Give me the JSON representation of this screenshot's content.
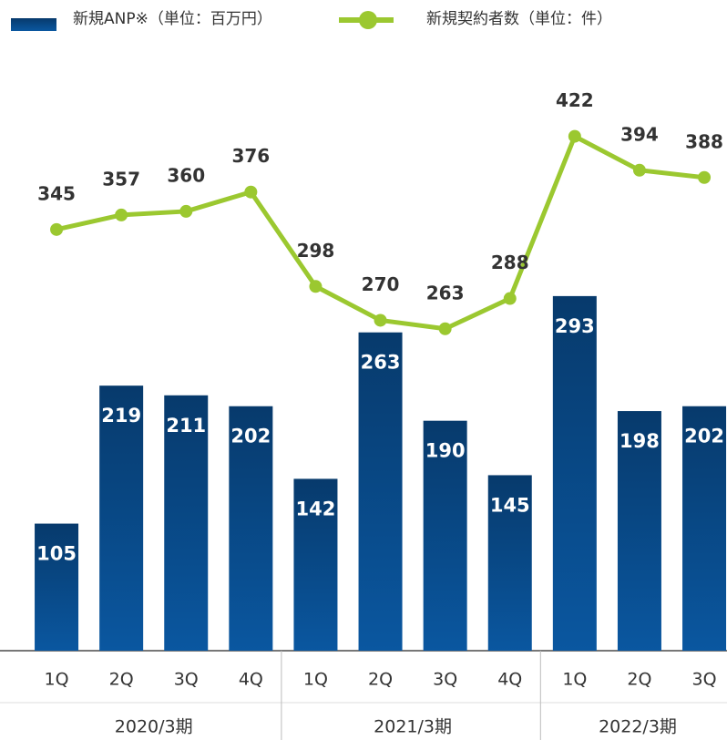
{
  "chart_data": {
    "type": "bar-line",
    "groups": [
      {
        "name": "2020/3期",
        "categories": [
          "1Q",
          "2Q",
          "3Q",
          "4Q"
        ]
      },
      {
        "name": "2021/3期",
        "categories": [
          "1Q",
          "2Q",
          "3Q",
          "4Q"
        ]
      },
      {
        "name": "2022/3期",
        "categories": [
          "1Q",
          "2Q",
          "3Q"
        ]
      }
    ],
    "series": [
      {
        "name": "新規ANP※（単位：百万円）",
        "type": "bar",
        "color": "#0a57a0",
        "values": [
          105,
          219,
          211,
          202,
          142,
          263,
          190,
          145,
          293,
          198,
          202
        ]
      },
      {
        "name": "新規契約者数（単位：件）",
        "type": "line",
        "axis": "y2",
        "color": "#9bc830",
        "values": [
          345,
          357,
          360,
          376,
          298,
          270,
          263,
          288,
          422,
          394,
          388
        ]
      }
    ],
    "ylim": [
      0,
      500
    ],
    "y2lim": [
      -3,
      497
    ],
    "legend": "top-left"
  }
}
